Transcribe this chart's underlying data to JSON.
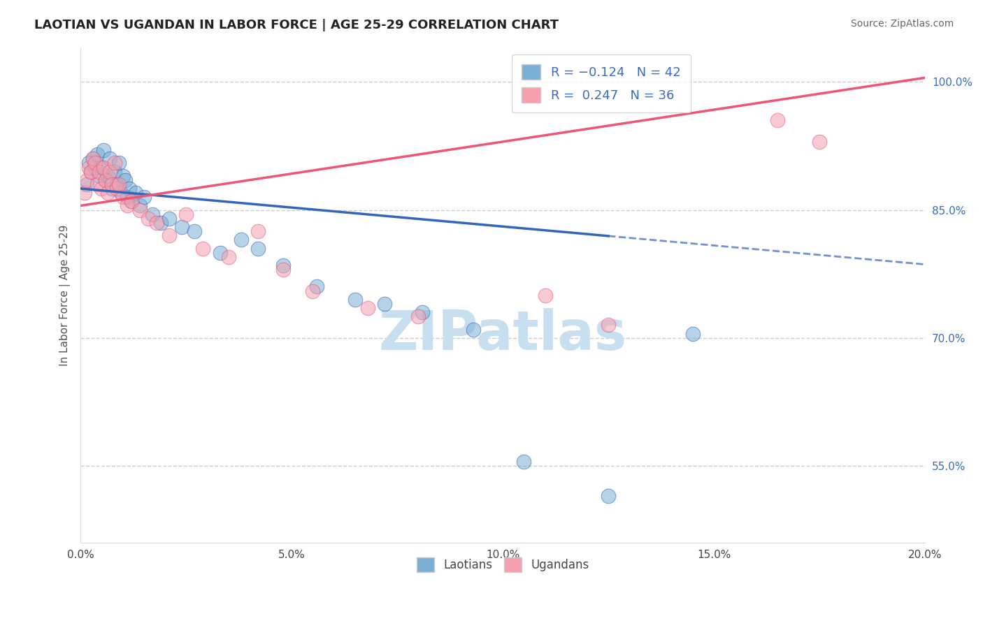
{
  "title": "LAOTIAN VS UGANDAN IN LABOR FORCE | AGE 25-29 CORRELATION CHART",
  "source": "Source: ZipAtlas.com",
  "ylabel": "In Labor Force | Age 25-29",
  "xlabel_ticks": [
    "0.0%",
    "5.0%",
    "10.0%",
    "15.0%",
    "20.0%"
  ],
  "xlabel_vals": [
    0.0,
    5.0,
    10.0,
    15.0,
    20.0
  ],
  "xlim": [
    0.0,
    20.0
  ],
  "ylim": [
    46.0,
    104.0
  ],
  "yticks": [
    55.0,
    70.0,
    85.0,
    100.0
  ],
  "ytick_labels": [
    "55.0%",
    "70.0%",
    "85.0%",
    "100.0%"
  ],
  "legend_labels": [
    "Laotians",
    "Ugandans"
  ],
  "laotian_R": -0.124,
  "laotian_N": 42,
  "ugandan_R": 0.247,
  "ugandan_N": 36,
  "blue_color": "#7BAFD4",
  "pink_color": "#F4A0AF",
  "blue_line_color": "#3366BB",
  "pink_line_color": "#EE5577",
  "watermark": "ZIPatlas",
  "watermark_color": "#C8DFF0",
  "title_fontsize": 13,
  "lao_trend_x0": 0.0,
  "lao_trend_y0": 87.5,
  "lao_trend_x1": 18.0,
  "lao_trend_y1": 79.5,
  "lao_trend_solid_end": 12.5,
  "uga_trend_x0": 0.0,
  "uga_trend_y0": 85.5,
  "uga_trend_x1": 20.0,
  "uga_trend_y1": 100.5,
  "laotian_x": [
    0.15,
    0.2,
    0.25,
    0.3,
    0.35,
    0.4,
    0.45,
    0.5,
    0.55,
    0.6,
    0.65,
    0.7,
    0.75,
    0.8,
    0.85,
    0.9,
    0.95,
    1.0,
    1.05,
    1.1,
    1.15,
    1.2,
    1.3,
    1.4,
    1.5,
    1.7,
    1.9,
    2.1,
    2.4,
    2.7,
    3.3,
    3.8,
    4.2,
    4.8,
    5.6,
    6.5,
    7.2,
    8.1,
    9.3,
    10.5,
    12.5,
    14.5
  ],
  "laotian_y": [
    88.0,
    90.5,
    89.5,
    91.0,
    90.0,
    91.5,
    89.0,
    90.0,
    92.0,
    88.5,
    89.0,
    91.0,
    87.5,
    89.5,
    88.0,
    90.5,
    87.0,
    89.0,
    88.5,
    86.5,
    87.5,
    86.0,
    87.0,
    85.5,
    86.5,
    84.5,
    83.5,
    84.0,
    83.0,
    82.5,
    80.0,
    81.5,
    80.5,
    78.5,
    76.0,
    74.5,
    74.0,
    73.0,
    71.0,
    55.5,
    51.5,
    70.5
  ],
  "ugandan_x": [
    0.1,
    0.15,
    0.2,
    0.25,
    0.3,
    0.35,
    0.4,
    0.45,
    0.5,
    0.55,
    0.6,
    0.65,
    0.7,
    0.75,
    0.8,
    0.85,
    0.9,
    1.0,
    1.1,
    1.2,
    1.4,
    1.6,
    1.8,
    2.1,
    2.5,
    2.9,
    3.5,
    4.2,
    4.8,
    5.5,
    6.8,
    8.0,
    11.0,
    12.5,
    16.5,
    17.5
  ],
  "ugandan_y": [
    87.0,
    88.5,
    90.0,
    89.5,
    91.0,
    90.5,
    88.0,
    89.5,
    87.5,
    90.0,
    88.5,
    87.0,
    89.5,
    88.0,
    90.5,
    87.5,
    88.0,
    86.5,
    85.5,
    86.0,
    85.0,
    84.0,
    83.5,
    82.0,
    84.5,
    80.5,
    79.5,
    82.5,
    78.0,
    75.5,
    73.5,
    72.5,
    75.0,
    71.5,
    95.5,
    93.0
  ]
}
